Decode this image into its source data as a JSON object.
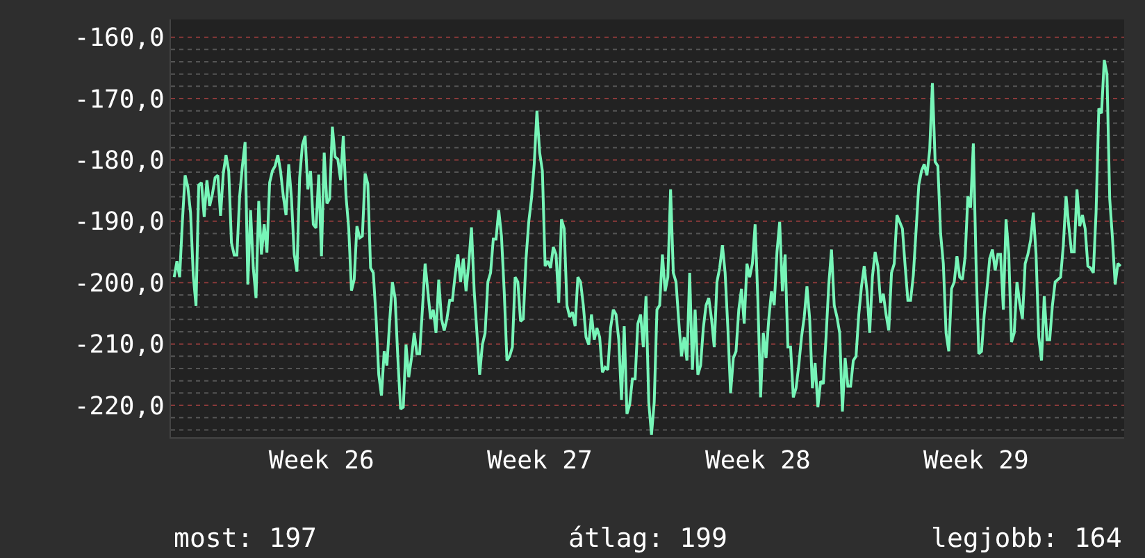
{
  "chart_data": {
    "type": "line",
    "categories": [
      null,
      null,
      null,
      null,
      null,
      null,
      null,
      null,
      null,
      null,
      null,
      null,
      null,
      null,
      null,
      null,
      null,
      null,
      null,
      null,
      null,
      null,
      null,
      null,
      null,
      null,
      null,
      null,
      null,
      null,
      null,
      null,
      null,
      null,
      null,
      null,
      null,
      null,
      null,
      null,
      null,
      null,
      null,
      null,
      null,
      null,
      null,
      null,
      null,
      null,
      null,
      null,
      null,
      null,
      "Week 26",
      null,
      null,
      null,
      null,
      null,
      null,
      null,
      null,
      null,
      null,
      null,
      null,
      null,
      null,
      null,
      null,
      null,
      null,
      null,
      null,
      null,
      null,
      null,
      null,
      null,
      null,
      null,
      null,
      null,
      null,
      null,
      null,
      null,
      null,
      null,
      null,
      null,
      null,
      null,
      null,
      null,
      null,
      null,
      null,
      null,
      null,
      null,
      null,
      null,
      null,
      null,
      null,
      null,
      null,
      null,
      null,
      null,
      null,
      null,
      null,
      null,
      null,
      null,
      null,
      null,
      null,
      null,
      null,
      null,
      null,
      null,
      null,
      null,
      null,
      null,
      null,
      null,
      null,
      null,
      "Week 27",
      null,
      null,
      null,
      null,
      null,
      null,
      null,
      null,
      null,
      null,
      null,
      null,
      null,
      null,
      null,
      null,
      null,
      null,
      null,
      null,
      null,
      null,
      null,
      null,
      null,
      null,
      null,
      null,
      null,
      null,
      null,
      null,
      null,
      null,
      null,
      null,
      null,
      null,
      null,
      null,
      null,
      null,
      null,
      null,
      null,
      null,
      null,
      null,
      null,
      null,
      null,
      null,
      null,
      null,
      null,
      null,
      null,
      null,
      null,
      null,
      null,
      null,
      null,
      null,
      null,
      null,
      null,
      null,
      null,
      null,
      null,
      null,
      null,
      null,
      null,
      null,
      null,
      null,
      null,
      "Week 28",
      null,
      null,
      null,
      null,
      null,
      null,
      null,
      null,
      null,
      null,
      null,
      null,
      null,
      null,
      null,
      null,
      null,
      null,
      null,
      null,
      null,
      null,
      null,
      null,
      null,
      null,
      null,
      null,
      null,
      null,
      null,
      null,
      null,
      null,
      null,
      null,
      null,
      null,
      null,
      null,
      null,
      null,
      null,
      null,
      null,
      null,
      null,
      null,
      null,
      null,
      null,
      null,
      null,
      null,
      null,
      null,
      null,
      null,
      null,
      null,
      null,
      null,
      null,
      null,
      null,
      null,
      null,
      null,
      null,
      null,
      null,
      null,
      null,
      null,
      null,
      null,
      null,
      null,
      null,
      "Week 29",
      null,
      null,
      null,
      null,
      null,
      null,
      null,
      null,
      null,
      null,
      null,
      null,
      null,
      null,
      null,
      null,
      null,
      null,
      null,
      null,
      null,
      null,
      null,
      null,
      null,
      null,
      null,
      null,
      null,
      null,
      null,
      null,
      null,
      null,
      null,
      null,
      null,
      null,
      null,
      null,
      null,
      null,
      null,
      null,
      null,
      null,
      null,
      null,
      null,
      null,
      null,
      null,
      null
    ],
    "series": [
      {
        "color": "#77f5b8",
        "values": [
          -199.1,
          -196.5,
          -199.1,
          -190.1,
          -182.5,
          -184.4,
          -188.6,
          -198.8,
          -203.8,
          -184.1,
          -183.7,
          -189.3,
          -183.3,
          -187.5,
          -185.6,
          -182.9,
          -182.5,
          -189.1,
          -182.2,
          -179.2,
          -181.8,
          -193.5,
          -195.5,
          -195.5,
          -185.9,
          -181.0,
          -177.1,
          -200.3,
          -188.2,
          -197.6,
          -202.5,
          -186.7,
          -195.4,
          -190.5,
          -195.1,
          -183.7,
          -181.8,
          -181.0,
          -179.2,
          -181.8,
          -185.9,
          -189.0,
          -180.7,
          -186.3,
          -195.4,
          -198.2,
          -182.9,
          -177.6,
          -176.1,
          -184.8,
          -181.8,
          -190.5,
          -191.1,
          -182.4,
          -195.7,
          -178.8,
          -187.1,
          -186.3,
          -174.6,
          -179.5,
          -179.9,
          -183.3,
          -176.1,
          -185.9,
          -191.2,
          -201.3,
          -199.5,
          -190.8,
          -192.7,
          -192.4,
          -182.2,
          -183.9,
          -197.6,
          -198.4,
          -205.6,
          -215.0,
          -218.4,
          -211.2,
          -213.5,
          -206.3,
          -199.9,
          -202.5,
          -212.3,
          -220.6,
          -220.3,
          -210.1,
          -215.4,
          -212.3,
          -208.2,
          -211.6,
          -211.6,
          -204.4,
          -196.9,
          -201.4,
          -205.9,
          -204.4,
          -208.2,
          -199.5,
          -205.9,
          -207.8,
          -205.9,
          -202.9,
          -202.9,
          -198.8,
          -195.4,
          -199.9,
          -196.1,
          -201.4,
          -196.9,
          -191.0,
          -201.4,
          -208.2,
          -215.0,
          -210.1,
          -208.2,
          -199.9,
          -198.4,
          -192.9,
          -192.9,
          -188.2,
          -192.4,
          -201.4,
          -212.7,
          -212.0,
          -210.5,
          -199.1,
          -199.9,
          -206.3,
          -205.9,
          -196.1,
          -190.1,
          -186.3,
          -180.7,
          -172.0,
          -178.8,
          -181.8,
          -197.3,
          -196.5,
          -197.6,
          -194.2,
          -195.4,
          -203.3,
          -189.7,
          -191.2,
          -203.7,
          -205.6,
          -204.8,
          -207.1,
          -199.1,
          -199.9,
          -203.7,
          -208.9,
          -210.1,
          -205.2,
          -209.3,
          -207.4,
          -208.9,
          -214.6,
          -213.8,
          -214.2,
          -207.4,
          -204.4,
          -205.2,
          -209.3,
          -219.1,
          -207.1,
          -221.4,
          -219.9,
          -215.7,
          -215.7,
          -206.7,
          -205.2,
          -210.5,
          -202.2,
          -219.5,
          -224.8,
          -219.5,
          -204.4,
          -203.7,
          -195.4,
          -201.4,
          -199.1,
          -184.8,
          -198.4,
          -199.9,
          -206.3,
          -212.0,
          -208.9,
          -212.7,
          -198.4,
          -214.2,
          -204.4,
          -215.0,
          -213.5,
          -207.4,
          -203.7,
          -202.5,
          -205.9,
          -210.5,
          -199.9,
          -197.6,
          -193.9,
          -198.4,
          -207.4,
          -218.0,
          -212.3,
          -211.2,
          -204.4,
          -201.0,
          -206.7,
          -196.9,
          -199.1,
          -196.9,
          -190.5,
          -202.9,
          -218.7,
          -208.2,
          -212.3,
          -205.9,
          -201.4,
          -203.7,
          -195.0,
          -190.1,
          -201.4,
          -195.4,
          -210.5,
          -210.5,
          -218.7,
          -217.2,
          -213.5,
          -208.9,
          -205.6,
          -200.6,
          -205.9,
          -217.2,
          -213.1,
          -220.3,
          -216.1,
          -216.5,
          -208.9,
          -200.3,
          -194.6,
          -203.7,
          -205.6,
          -208.2,
          -221.0,
          -212.3,
          -216.9,
          -216.9,
          -212.7,
          -212.0,
          -205.2,
          -200.6,
          -197.3,
          -201.4,
          -208.2,
          -199.1,
          -195.0,
          -197.3,
          -203.3,
          -201.8,
          -205.2,
          -207.8,
          -198.4,
          -196.9,
          -189.0,
          -190.1,
          -191.2,
          -197.3,
          -202.9,
          -202.9,
          -198.8,
          -191.6,
          -184.1,
          -181.8,
          -180.7,
          -182.5,
          -178.4,
          -167.5,
          -180.3,
          -181.0,
          -192.0,
          -196.9,
          -208.2,
          -211.2,
          -201.0,
          -199.9,
          -195.7,
          -199.1,
          -199.5,
          -195.7,
          -185.9,
          -187.8,
          -177.3,
          -196.9,
          -211.6,
          -211.2,
          -205.2,
          -201.0,
          -196.1,
          -194.6,
          -198.0,
          -195.4,
          -195.4,
          -204.4,
          -189.7,
          -195.4,
          -209.7,
          -208.2,
          -199.9,
          -203.3,
          -205.9,
          -196.9,
          -195.4,
          -193.1,
          -188.6,
          -195.4,
          -208.9,
          -212.7,
          -202.2,
          -209.3,
          -209.3,
          -203.7,
          -199.9,
          -199.5,
          -199.1,
          -193.9,
          -185.9,
          -190.8,
          -195.0,
          -195.0,
          -184.8,
          -190.8,
          -189.0,
          -191.2,
          -197.3,
          -197.6,
          -198.4,
          -188.6,
          -171.6,
          -172.4,
          -163.7,
          -166.0,
          -186.3,
          -192.7,
          -200.3,
          -196.9,
          -197.3
        ]
      }
    ],
    "ylim": [
      -225.2,
      -157.1
    ],
    "yticks": [
      {
        "value": -160,
        "label": "-160,0"
      },
      {
        "value": -162,
        "label": null
      },
      {
        "value": -164,
        "label": null
      },
      {
        "value": -166,
        "label": null
      },
      {
        "value": -168,
        "label": null
      },
      {
        "value": -170,
        "label": "-170,0"
      },
      {
        "value": -172,
        "label": null
      },
      {
        "value": -174,
        "label": null
      },
      {
        "value": -176,
        "label": null
      },
      {
        "value": -178,
        "label": null
      },
      {
        "value": -180,
        "label": "-180,0"
      },
      {
        "value": -182,
        "label": null
      },
      {
        "value": -184,
        "label": null
      },
      {
        "value": -186,
        "label": null
      },
      {
        "value": -188,
        "label": null
      },
      {
        "value": -190,
        "label": "-190,0"
      },
      {
        "value": -192,
        "label": null
      },
      {
        "value": -194,
        "label": null
      },
      {
        "value": -196,
        "label": null
      },
      {
        "value": -198,
        "label": null
      },
      {
        "value": -200,
        "label": "-200,0"
      },
      {
        "value": -202,
        "label": null
      },
      {
        "value": -204,
        "label": null
      },
      {
        "value": -206,
        "label": null
      },
      {
        "value": -208,
        "label": null
      },
      {
        "value": -210,
        "label": "-210,0"
      },
      {
        "value": -212,
        "label": null
      },
      {
        "value": -214,
        "label": null
      },
      {
        "value": -216,
        "label": null
      },
      {
        "value": -218,
        "label": null
      },
      {
        "value": -220,
        "label": "-220,0"
      },
      {
        "value": -222,
        "label": null
      },
      {
        "value": -224,
        "label": null
      }
    ],
    "grid": "y",
    "annotations": [
      "most: 197",
      "átlag: 199",
      "legjobb: 164"
    ]
  }
}
